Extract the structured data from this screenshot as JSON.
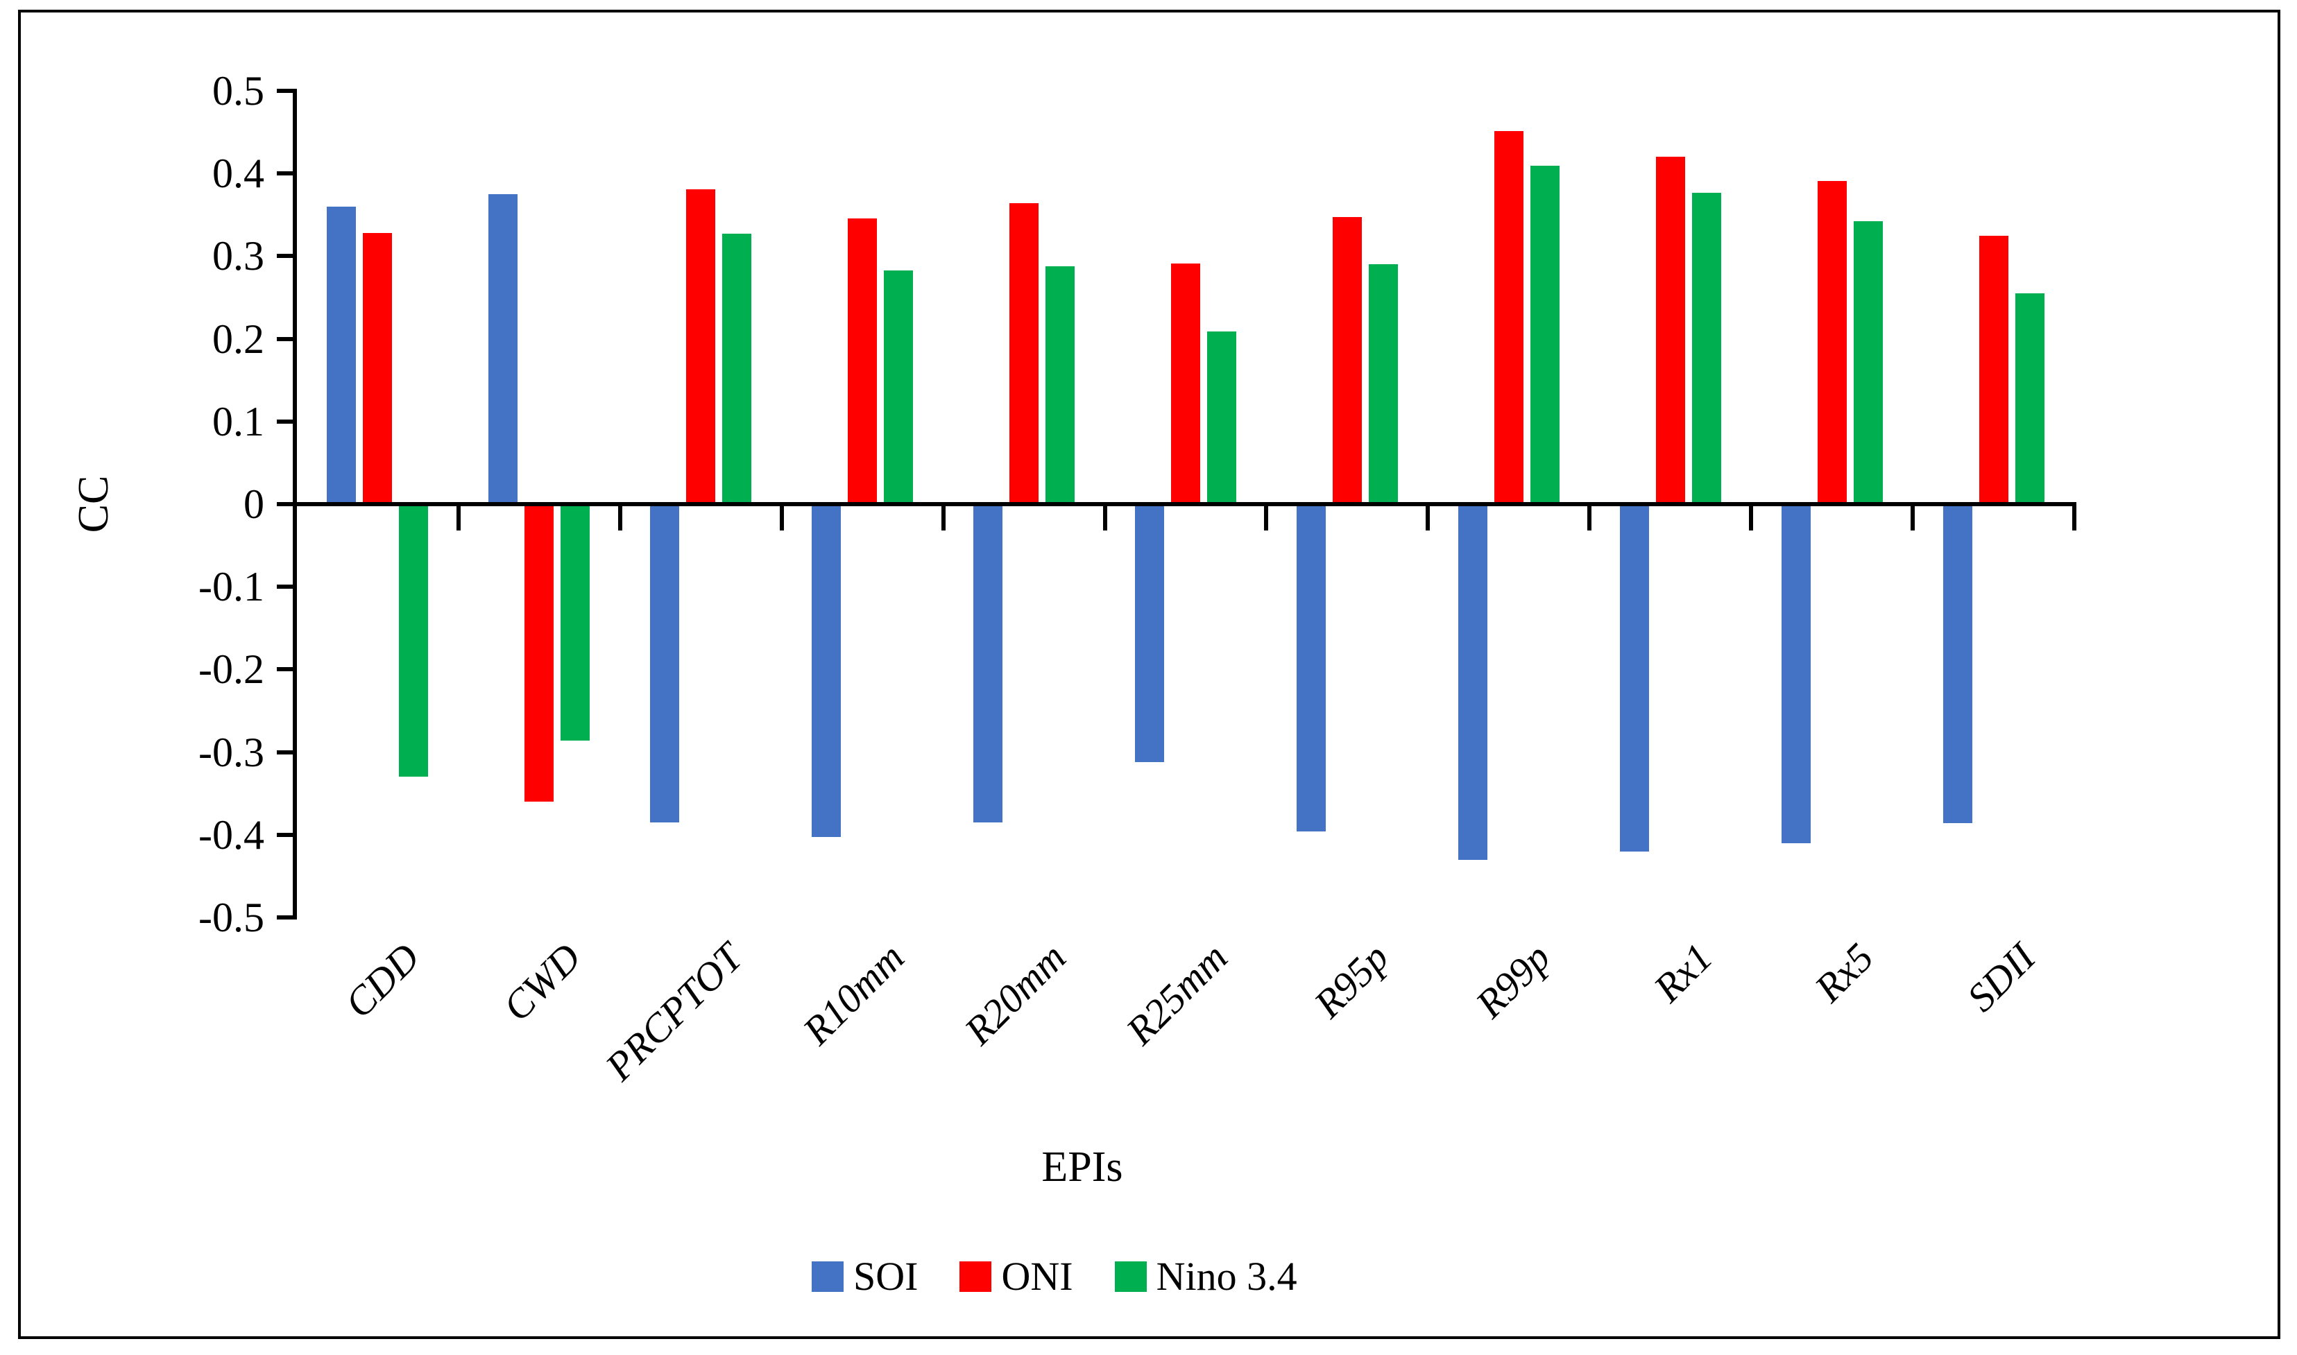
{
  "figure": {
    "background": "#ffffff",
    "border_color": "#000000"
  },
  "chart_data": {
    "type": "bar",
    "title": "",
    "xlabel": "EPIs",
    "ylabel": "CC",
    "categories": [
      "CDD",
      "CWD",
      "PRCPTOT",
      "R10mm",
      "R20mm",
      "R25mm",
      "R95p",
      "R99p",
      "Rx1",
      "Rx5",
      "SDII"
    ],
    "series": [
      {
        "name": "SOI",
        "color": "#4472C4",
        "values": [
          0.36,
          0.375,
          -0.385,
          -0.403,
          -0.385,
          -0.312,
          -0.396,
          -0.43,
          -0.42,
          -0.41,
          -0.386
        ]
      },
      {
        "name": "ONI",
        "color": "#FF0000",
        "values": [
          0.328,
          -0.36,
          0.381,
          0.346,
          0.364,
          0.291,
          0.347,
          0.451,
          0.42,
          0.391,
          0.325
        ]
      },
      {
        "name": "Nino 3.4",
        "color": "#00B050",
        "values": [
          -0.33,
          -0.286,
          0.327,
          0.283,
          0.288,
          0.209,
          0.29,
          0.409,
          0.377,
          0.342,
          0.255
        ]
      }
    ],
    "ylim": [
      -0.5,
      0.5
    ],
    "ytick_step": 0.1,
    "ytick_labels": [
      "0.5",
      "0.4",
      "0.3",
      "0.2",
      "0.1",
      "0",
      "-0.1",
      "-0.2",
      "-0.3",
      "-0.4",
      "-0.5"
    ],
    "grid": false,
    "legend_position": "bottom",
    "axis_color": "#000000"
  }
}
